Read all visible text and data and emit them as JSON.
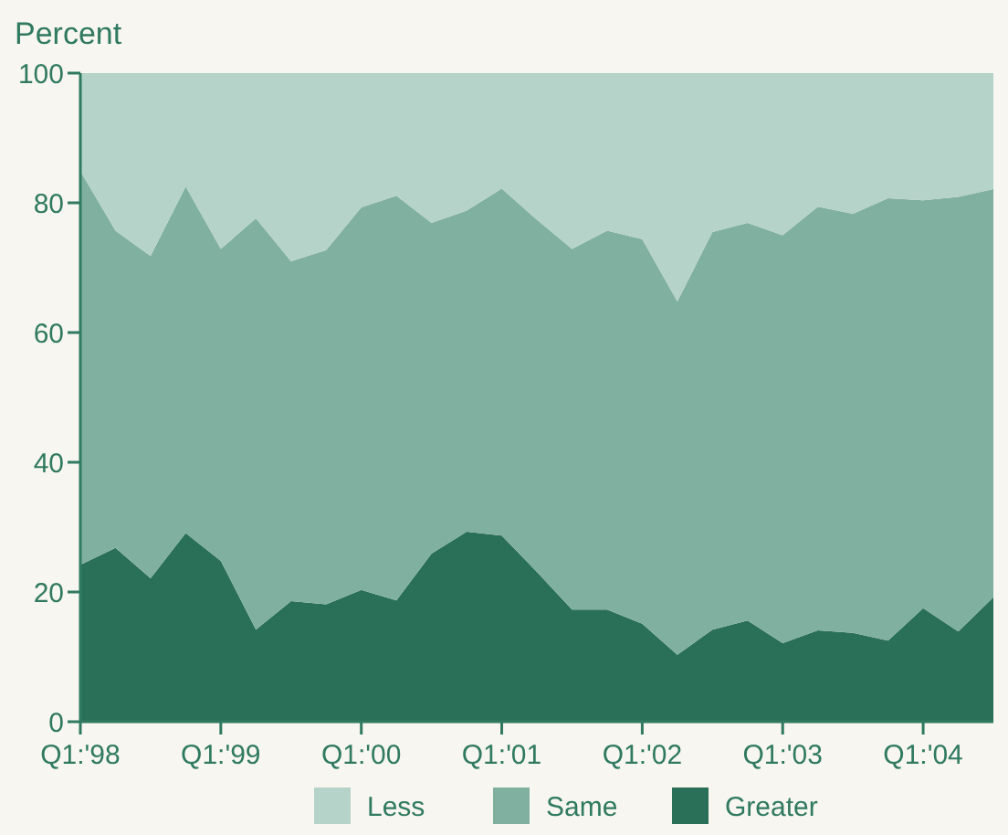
{
  "chart_data": {
    "type": "area",
    "stacked": true,
    "ylabel": "Percent",
    "categories": [
      "Q1:'98",
      null,
      null,
      null,
      "Q1:'99",
      null,
      null,
      null,
      "Q1:'00",
      null,
      null,
      null,
      "Q1:'01",
      null,
      null,
      null,
      "Q1:'02",
      null,
      null,
      null,
      "Q1:'03",
      null,
      null,
      null,
      "Q1:'04",
      null,
      null
    ],
    "series": [
      {
        "name": "Greater",
        "color": "#2a7058",
        "values": [
          24.2,
          26.8,
          22.1,
          29.1,
          24.8,
          14.2,
          18.6,
          18.1,
          20.3,
          18.7,
          25.9,
          29.3,
          28.7,
          23.1,
          17.3,
          17.3,
          15.1,
          10.3,
          14.2,
          15.6,
          12.1,
          14.1,
          13.7,
          12.5,
          17.5,
          13.9,
          19.2
        ]
      },
      {
        "name": "Same",
        "color": "#80b0a0",
        "values": [
          60.7,
          48.9,
          49.7,
          53.4,
          48.1,
          63.4,
          52.4,
          54.6,
          59.0,
          62.4,
          51.0,
          49.5,
          53.5,
          54.3,
          55.6,
          58.4,
          59.3,
          54.5,
          61.3,
          61.3,
          62.9,
          65.3,
          64.6,
          68.2,
          62.9,
          67.0,
          62.9
        ]
      },
      {
        "name": "Less",
        "color": "#b5d3c9",
        "values": [
          15.1,
          24.3,
          28.2,
          17.5,
          27.1,
          22.4,
          29.0,
          27.3,
          20.7,
          18.9,
          23.1,
          21.2,
          17.8,
          22.6,
          27.1,
          24.3,
          25.6,
          35.2,
          24.5,
          23.1,
          25.0,
          20.6,
          21.7,
          19.3,
          19.6,
          19.1,
          17.9
        ]
      }
    ],
    "ylim": [
      0,
      100
    ],
    "yticks": [
      0,
      20,
      40,
      60,
      80,
      100
    ],
    "grid": false,
    "legend": "bottom"
  }
}
